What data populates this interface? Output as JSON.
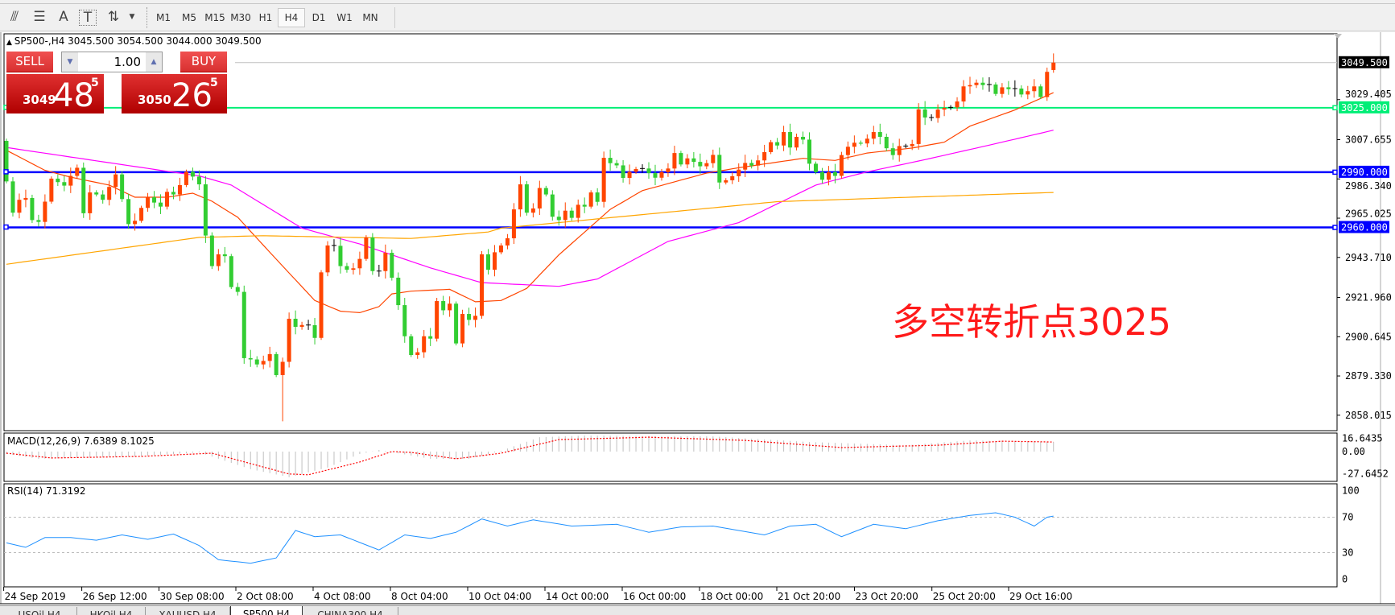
{
  "toolbar": {
    "icons": [
      "elliott-wave-icon",
      "fibonacci-icon",
      "text-icon",
      "text-label-icon",
      "arrows-icon"
    ],
    "icon_glyphs": [
      "⫻",
      "☰",
      "A",
      "T",
      "⇅"
    ],
    "timeframes": [
      "M1",
      "M5",
      "M15",
      "M30",
      "H1",
      "H4",
      "D1",
      "W1",
      "MN"
    ],
    "selected_timeframe": "H4"
  },
  "chart": {
    "header": "SP500-,H4  3045.500 3054.500 3044.000 3049.500",
    "symbol": "SP500-,H4",
    "ohlc": {
      "open": 3045.5,
      "high": 3054.5,
      "low": 3044.0,
      "close": 3049.5
    }
  },
  "trade_panel": {
    "sell_label": "SELL",
    "buy_label": "BUY",
    "lot": "1.00",
    "sell": {
      "prefix": "3049",
      "big": "48",
      "sup": "5"
    },
    "buy": {
      "prefix": "3050",
      "big": "26",
      "sup": "5"
    }
  },
  "annotation": "多空转折点3025",
  "colors": {
    "bull": "#ff4500",
    "bear": "#32cd32",
    "ma_fast": "#ff4500",
    "ma_mid": "#ff00ff",
    "ma_slow": "#ffa500",
    "level_green": "#00ee76",
    "level_blue": "#0000ff",
    "rsi": "#1e90ff",
    "macd_signal": "#ff0000",
    "macd_hist": "#c0c0c0",
    "annotation": "#ff1a1a"
  },
  "price_axis": {
    "ticks": [
      "3029.405",
      "3007.655",
      "2986.340",
      "2965.025",
      "2943.710",
      "2921.960",
      "2900.645",
      "2879.330",
      "2858.015"
    ],
    "current_price": "3049.500"
  },
  "levels": [
    {
      "price": 3025.0,
      "label": "3025.000",
      "color": "#00ee76"
    },
    {
      "price": 2990.0,
      "label": "2990.000",
      "color": "#0000ff"
    },
    {
      "price": 2960.0,
      "label": "2960.000",
      "color": "#0000ff"
    }
  ],
  "time_axis": [
    "24 Sep 2019",
    "26 Sep 12:00",
    "30 Sep 08:00",
    "2 Oct 08:00",
    "4 Oct 08:00",
    "8 Oct 04:00",
    "10 Oct 04:00",
    "14 Oct 00:00",
    "16 Oct 00:00",
    "18 Oct 00:00",
    "21 Oct 20:00",
    "23 Oct 20:00",
    "25 Oct 20:00",
    "29 Oct 16:00"
  ],
  "chart_data": {
    "type": "candlestick",
    "first_open": 3007,
    "closes": [
      2985,
      2968,
      2975,
      2976,
      2964,
      2963,
      2974,
      2986.5,
      2984.6,
      2982.7,
      2988,
      2992.4,
      2967.7,
      2979,
      2977.9,
      2975,
      2982,
      2988.8,
      2975.4,
      2961.8,
      2963.6,
      2970.6,
      2976.4,
      2973.5,
      2971.3,
      2979.3,
      2977.9,
      2983,
      2990.2,
      2987.6,
      2983.4,
      2955.6,
      2939,
      2945.4,
      2944.4,
      2927.6,
      2925,
      2889,
      2888.3,
      2885.6,
      2887.5,
      2891.2,
      2879.8,
      2887,
      2910.4,
      2906,
      2907,
      2906.9,
      2900,
      2935.6,
      2950.2,
      2950,
      2939,
      2937,
      2937.8,
      2942.9,
      2954.6,
      2936.3,
      2936.3,
      2946.2,
      2932.7,
      2917.8,
      2900.9,
      2890.7,
      2892.2,
      2900.9,
      2899.6,
      2920,
      2915,
      2918.6,
      2897,
      2913,
      2909.8,
      2912,
      2945.4,
      2937,
      2946.5,
      2950.2,
      2954.1,
      2969.8,
      2983.4,
      2968,
      2970.3,
      2981.4,
      2977.9,
      2965.8,
      2964,
      2969.1,
      2965.2,
      2972.3,
      2971.3,
      2979,
      2973.9,
      2997.8,
      2994.9,
      2993.7,
      2986.9,
      2990.2,
      2991.7,
      2992,
      2989.5,
      2987,
      2990,
      2992,
      3000.4,
      2994.2,
      2997.5,
      2995.6,
      2993.2,
      2994.9,
      2999.4,
      2984.4,
      2985.6,
      2987.8,
      2991.4,
      2995,
      2993.6,
      2996.4,
      3000.9,
      3006.3,
      3004.5,
      3011.8,
      3003.4,
      3009.2,
      3007.7,
      2994.6,
      2990,
      2985.9,
      2990,
      2988,
      2999.3,
      3003.8,
      3006,
      3005.6,
      3008.2,
      3011.8,
      3009.2,
      3003,
      2999.3,
      3004.2,
      3004.1,
      3005.3,
      3024.1,
      3019.7,
      3019.4,
      3024,
      3024.9,
      3025.2,
      3028.4,
      3036.6,
      3037.3,
      3038.6,
      3037.3,
      3037.6,
      3032.5,
      3036.1,
      3035.1,
      3035.4,
      3032.2,
      3034,
      3036.6,
      3030.8,
      3044.5,
      3049.5
    ],
    "last_candle": {
      "open": 3045.5,
      "high": 3054.5,
      "low": 3044.0
    },
    "notable_lows": {
      "43": 2854.7
    },
    "moving_averages": [
      {
        "color": "#ff4500",
        "points": [
          [
            0,
            3001.9
          ],
          [
            6,
            2991
          ],
          [
            10,
            2987.3
          ],
          [
            16,
            2983
          ],
          [
            20,
            2976.4
          ],
          [
            25,
            2976.4
          ],
          [
            29,
            2978.6
          ],
          [
            32,
            2974.2
          ],
          [
            36,
            2965.5
          ],
          [
            41,
            2946.5
          ],
          [
            48,
            2920.3
          ],
          [
            52,
            2914.5
          ],
          [
            55,
            2913.7
          ],
          [
            58,
            2917
          ],
          [
            60,
            2923.9
          ],
          [
            63,
            2925.4
          ],
          [
            69,
            2926.4
          ],
          [
            73,
            2919.6
          ],
          [
            77,
            2920.3
          ],
          [
            81,
            2926.9
          ],
          [
            86,
            2945.1
          ],
          [
            94,
            2969.8
          ],
          [
            99,
            2980
          ],
          [
            109,
            2989.5
          ],
          [
            114,
            2992.4
          ],
          [
            124,
            2997.5
          ],
          [
            129,
            2996.4
          ],
          [
            134,
            3000.4
          ],
          [
            141,
            3003.1
          ],
          [
            146,
            3006.3
          ],
          [
            150,
            3015
          ],
          [
            157,
            3023.8
          ],
          [
            163,
            3033.2
          ]
        ]
      },
      {
        "color": "#ff00ff",
        "points": [
          [
            0,
            3003.4
          ],
          [
            25,
            2990.5
          ],
          [
            30,
            2988
          ],
          [
            35,
            2983
          ],
          [
            46,
            2959.6
          ],
          [
            55,
            2951
          ],
          [
            66,
            2938
          ],
          [
            74,
            2930
          ],
          [
            86,
            2928
          ],
          [
            92,
            2932
          ],
          [
            103,
            2952.4
          ],
          [
            114,
            2962.6
          ],
          [
            126,
            2983
          ],
          [
            134,
            2990.2
          ],
          [
            143,
            2996.8
          ],
          [
            154,
            3005.5
          ],
          [
            163,
            3012.8
          ]
        ]
      },
      {
        "color": "#ffa500",
        "points": [
          [
            0,
            2940
          ],
          [
            30,
            2954.6
          ],
          [
            40,
            2955.5
          ],
          [
            55,
            2954.5
          ],
          [
            63,
            2954
          ],
          [
            75,
            2957.5
          ],
          [
            77,
            2959.6
          ],
          [
            120,
            2974
          ],
          [
            163,
            2979
          ]
        ]
      }
    ],
    "macd": {
      "label": "MACD(12,26,9) 7.6389 8.1025",
      "axis_ticks": [
        "16.6435",
        "0.00",
        "-27.6452"
      ],
      "histogram": [
        [
          0,
          -3
        ],
        [
          5,
          -9
        ],
        [
          20,
          -6
        ],
        [
          30,
          -1
        ],
        [
          38,
          -22
        ],
        [
          44,
          -32
        ],
        [
          50,
          -20
        ],
        [
          55,
          -3
        ],
        [
          58,
          2
        ],
        [
          66,
          -9
        ],
        [
          72,
          -9
        ],
        [
          77,
          1
        ],
        [
          83,
          18
        ],
        [
          90,
          20
        ],
        [
          110,
          19
        ],
        [
          125,
          12
        ],
        [
          140,
          8
        ],
        [
          150,
          14
        ],
        [
          163,
          12
        ]
      ],
      "signal": [
        [
          0,
          -2
        ],
        [
          7,
          -8
        ],
        [
          21,
          -6
        ],
        [
          32,
          -2
        ],
        [
          44,
          -28
        ],
        [
          47,
          -29
        ],
        [
          55,
          -13
        ],
        [
          60,
          0
        ],
        [
          63,
          -1
        ],
        [
          70,
          -9
        ],
        [
          77,
          -2
        ],
        [
          86,
          15
        ],
        [
          100,
          18
        ],
        [
          115,
          14
        ],
        [
          130,
          5
        ],
        [
          145,
          8
        ],
        [
          155,
          13
        ],
        [
          163,
          12
        ]
      ]
    },
    "rsi": {
      "label": "RSI(14) 71.3192",
      "axis_ticks": [
        "100",
        "70",
        "30",
        "0"
      ],
      "levels": [
        70,
        30
      ],
      "points": [
        [
          0,
          41
        ],
        [
          3,
          36
        ],
        [
          6,
          47
        ],
        [
          10,
          47
        ],
        [
          14,
          44
        ],
        [
          18,
          50
        ],
        [
          22,
          45
        ],
        [
          26,
          51
        ],
        [
          30,
          38
        ],
        [
          33,
          22
        ],
        [
          38,
          18
        ],
        [
          42,
          24
        ],
        [
          45,
          55
        ],
        [
          48,
          48
        ],
        [
          52,
          50
        ],
        [
          58,
          33
        ],
        [
          62,
          50
        ],
        [
          66,
          46
        ],
        [
          70,
          53
        ],
        [
          74,
          68
        ],
        [
          78,
          60
        ],
        [
          82,
          67
        ],
        [
          88,
          60
        ],
        [
          95,
          62
        ],
        [
          100,
          53
        ],
        [
          105,
          59
        ],
        [
          110,
          60
        ],
        [
          114,
          55
        ],
        [
          118,
          50
        ],
        [
          122,
          60
        ],
        [
          126,
          62
        ],
        [
          130,
          48
        ],
        [
          135,
          62
        ],
        [
          140,
          57
        ],
        [
          145,
          66
        ],
        [
          150,
          72
        ],
        [
          154,
          75
        ],
        [
          157,
          70
        ],
        [
          160,
          60
        ],
        [
          162,
          70
        ],
        [
          163,
          71.3
        ]
      ]
    }
  },
  "tabs": [
    "USOil,H4",
    "HKOil,H4",
    "XAUUSD,H4",
    "SP500,H4",
    "CHINA300,H4"
  ],
  "active_tab": "SP500,H4"
}
